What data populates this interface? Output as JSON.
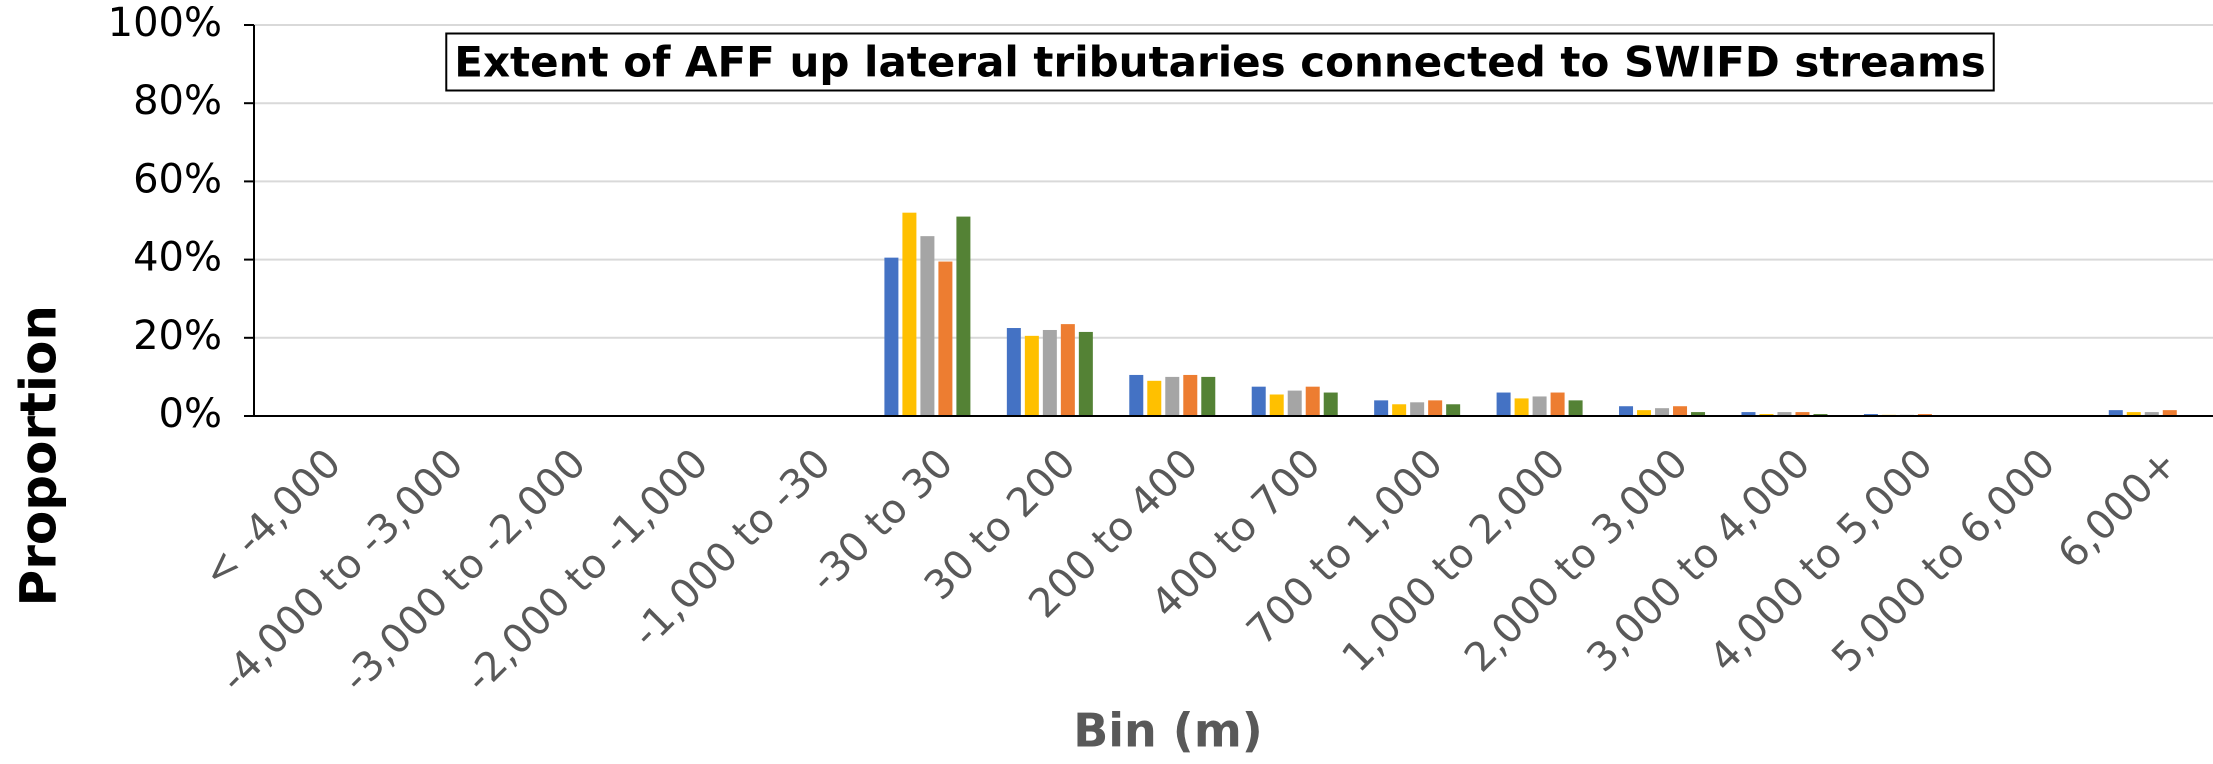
{
  "chart_data": {
    "type": "bar",
    "title": "Extent of AFF up lateral tributaries connected to SWIFD streams",
    "x_label": "Bin (m)",
    "y_label": "Proportion",
    "categories": [
      "< -4,000",
      "-4,000 to -3,000",
      "-3,000 to -2,000",
      "-2,000 to -1,000",
      "-1,000 to -30",
      "-30 to 30",
      "30 to 200",
      "200 to 400",
      "400 to 700",
      "700 to 1,000",
      "1,000 to 2,000",
      "2,000 to 3,000",
      "3,000 to 4,000",
      "4,000 to 5,000",
      "5,000 to 6,000",
      "6,000+"
    ],
    "series": [
      {
        "color": "#4472c4",
        "values": [
          0,
          0,
          0,
          0,
          0,
          40.5,
          22.5,
          10.5,
          7.5,
          4,
          6,
          2.5,
          1,
          0.5,
          0.2,
          1.5
        ]
      },
      {
        "color": "#ffc000",
        "values": [
          0,
          0,
          0,
          0,
          0,
          52,
          20.5,
          9,
          5.5,
          3,
          4.5,
          1.5,
          0.5,
          0.3,
          0.1,
          1
        ]
      },
      {
        "color": "#a5a5a5",
        "values": [
          0,
          0,
          0,
          0,
          0,
          46,
          22,
          10,
          6.5,
          3.5,
          5,
          2,
          1,
          0.3,
          0.1,
          1
        ]
      },
      {
        "color": "#ed7d31",
        "values": [
          0,
          0,
          0,
          0,
          0,
          39.5,
          23.5,
          10.5,
          7.5,
          4,
          6,
          2.5,
          1,
          0.5,
          0.2,
          1.5
        ]
      },
      {
        "color": "#548235",
        "values": [
          0,
          0,
          0,
          0,
          0,
          51,
          21.5,
          10,
          6,
          3,
          4,
          1,
          0.5,
          0.2,
          0.1,
          0
        ]
      }
    ],
    "ylim": [
      0,
      100
    ],
    "yticks": [
      {
        "value": 0,
        "label": "0%"
      },
      {
        "value": 20,
        "label": "20%"
      },
      {
        "value": 40,
        "label": "40%"
      },
      {
        "value": 60,
        "label": "60%"
      },
      {
        "value": 80,
        "label": "80%"
      },
      {
        "value": 100,
        "label": "100%"
      }
    ],
    "grid": true
  }
}
